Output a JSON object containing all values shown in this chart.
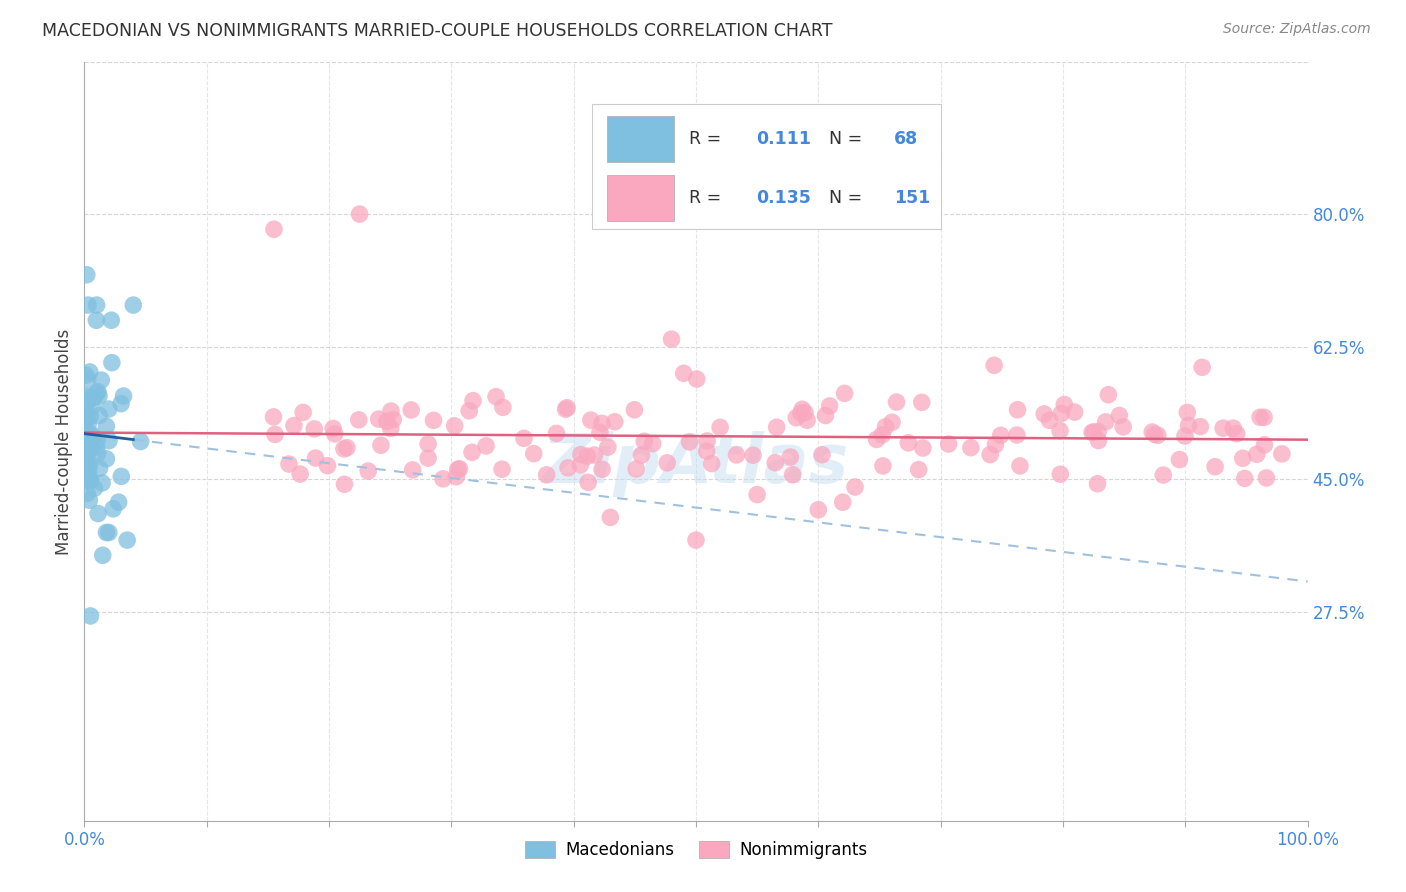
{
  "title": "MACEDONIAN VS NONIMMIGRANTS MARRIED-COUPLE HOUSEHOLDS CORRELATION CHART",
  "source": "Source: ZipAtlas.com",
  "ylabel": "Married-couple Households",
  "xlim": [
    0,
    1.0
  ],
  "ylim": [
    0,
    1.0
  ],
  "y_ticks_right": [
    0.275,
    0.45,
    0.625,
    0.8
  ],
  "y_tick_labels_right": [
    "27.5%",
    "45.0%",
    "62.5%",
    "80.0%"
  ],
  "macedonian_color": "#7fbfdf",
  "nonimmigrant_color": "#f9a8c0",
  "macedonian_line_solid_color": "#2060a0",
  "macedonian_line_dashed_color": "#a0c0e0",
  "nonimmigrant_line_color": "#e06080",
  "R_macedonian": "0.111",
  "N_macedonian": "68",
  "R_nonimmigrant": "0.135",
  "N_nonimmigrant": "151",
  "background_color": "#ffffff",
  "grid_color": "#cccccc",
  "tick_label_color": "#4488dd",
  "title_color": "#333333",
  "source_color": "#888888",
  "ylabel_color": "#444444",
  "watermark_color": "#c5dff0",
  "legend_border_color": "#cccccc",
  "seed_mac": 77,
  "seed_non": 42
}
